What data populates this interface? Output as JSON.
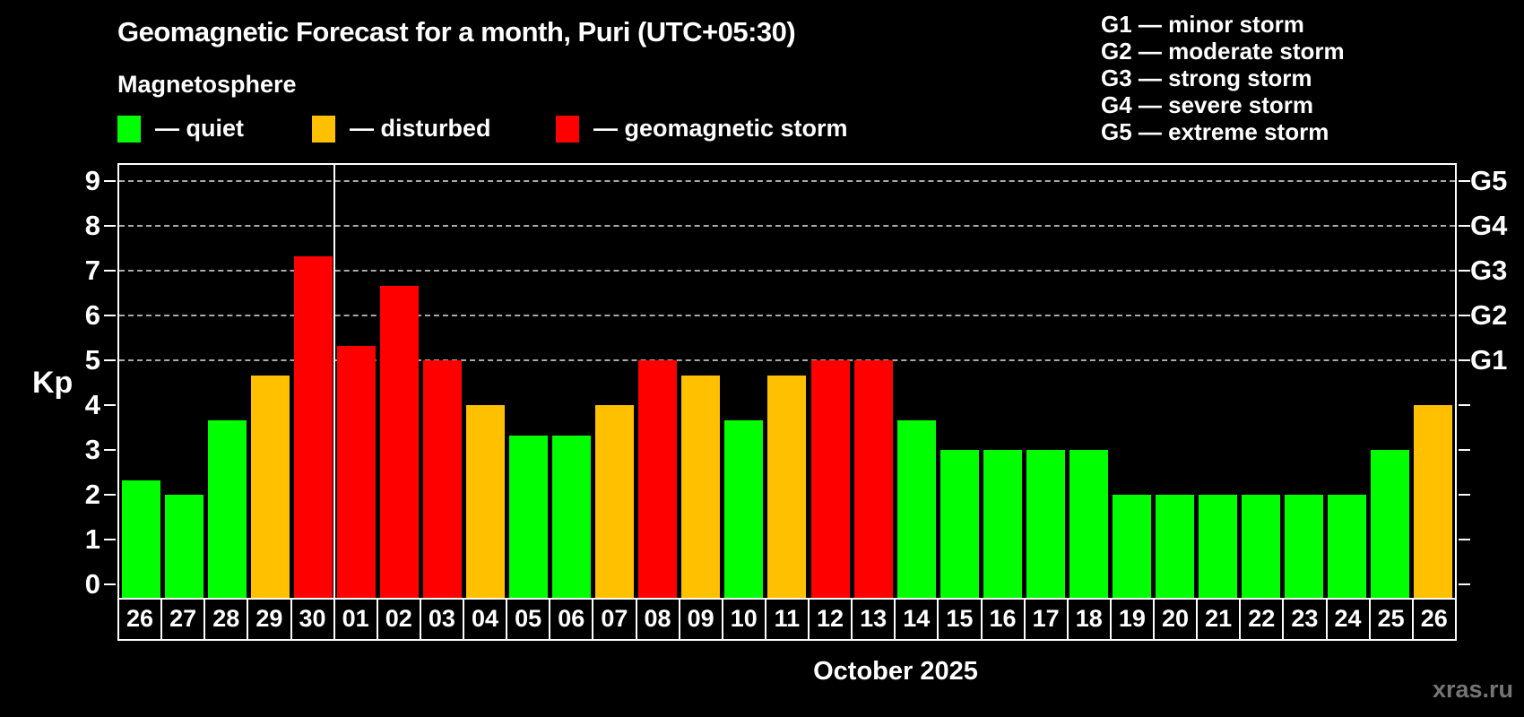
{
  "header": {
    "title": "Geomagnetic Forecast for a month, Puri (UTC+05:30)",
    "subtitle": "Magnetosphere"
  },
  "legend": {
    "items": [
      {
        "label": "— quiet",
        "state": "quiet"
      },
      {
        "label": "— disturbed",
        "state": "disturbed"
      },
      {
        "label": "— geomagnetic storm",
        "state": "storm"
      }
    ]
  },
  "storm_scale_legend": [
    "G1 — minor storm",
    "G2 — moderate storm",
    "G3 — strong storm",
    "G4 — severe storm",
    "G5 — extreme storm"
  ],
  "chart_data": {
    "type": "bar",
    "title": "Geomagnetic Forecast for a month, Puri (UTC+05:30)",
    "xlabel": "October 2025",
    "ylabel": "Kp",
    "ylim": [
      0,
      9.4
    ],
    "grid": "dashed horizontal at Kp 5-9",
    "yticks": [
      0,
      1,
      2,
      3,
      4,
      5,
      6,
      7,
      8,
      9
    ],
    "gridlines_at": [
      5,
      6,
      7,
      8,
      9
    ],
    "right_axis_labels": [
      {
        "label": "G1",
        "kp": 5
      },
      {
        "label": "G2",
        "kp": 6
      },
      {
        "label": "G3",
        "kp": 7
      },
      {
        "label": "G4",
        "kp": 8
      },
      {
        "label": "G5",
        "kp": 9
      }
    ],
    "month_boundary_after_bar": 5,
    "bars": [
      {
        "label": "26",
        "value": 2.33,
        "state": "quiet"
      },
      {
        "label": "27",
        "value": 2.0,
        "state": "quiet"
      },
      {
        "label": "28",
        "value": 3.67,
        "state": "quiet"
      },
      {
        "label": "29",
        "value": 4.67,
        "state": "disturbed"
      },
      {
        "label": "30",
        "value": 7.33,
        "state": "storm"
      },
      {
        "label": "01",
        "value": 5.33,
        "state": "storm"
      },
      {
        "label": "02",
        "value": 6.67,
        "state": "storm"
      },
      {
        "label": "03",
        "value": 5.0,
        "state": "storm"
      },
      {
        "label": "04",
        "value": 4.0,
        "state": "disturbed"
      },
      {
        "label": "05",
        "value": 3.33,
        "state": "quiet"
      },
      {
        "label": "06",
        "value": 3.33,
        "state": "quiet"
      },
      {
        "label": "07",
        "value": 4.0,
        "state": "disturbed"
      },
      {
        "label": "08",
        "value": 5.0,
        "state": "storm"
      },
      {
        "label": "09",
        "value": 4.67,
        "state": "disturbed"
      },
      {
        "label": "10",
        "value": 3.67,
        "state": "quiet"
      },
      {
        "label": "11",
        "value": 4.67,
        "state": "disturbed"
      },
      {
        "label": "12",
        "value": 5.0,
        "state": "storm"
      },
      {
        "label": "13",
        "value": 5.0,
        "state": "storm"
      },
      {
        "label": "14",
        "value": 3.67,
        "state": "quiet"
      },
      {
        "label": "15",
        "value": 3.0,
        "state": "quiet"
      },
      {
        "label": "16",
        "value": 3.0,
        "state": "quiet"
      },
      {
        "label": "17",
        "value": 3.0,
        "state": "quiet"
      },
      {
        "label": "18",
        "value": 3.0,
        "state": "quiet"
      },
      {
        "label": "19",
        "value": 2.0,
        "state": "quiet"
      },
      {
        "label": "20",
        "value": 2.0,
        "state": "quiet"
      },
      {
        "label": "21",
        "value": 2.0,
        "state": "quiet"
      },
      {
        "label": "22",
        "value": 2.0,
        "state": "quiet"
      },
      {
        "label": "23",
        "value": 2.0,
        "state": "quiet"
      },
      {
        "label": "24",
        "value": 2.0,
        "state": "quiet"
      },
      {
        "label": "25",
        "value": 3.0,
        "state": "quiet"
      },
      {
        "label": "26",
        "value": 4.0,
        "state": "disturbed"
      }
    ]
  },
  "colors": {
    "quiet": "#00ff00",
    "disturbed": "#ffc000",
    "storm": "#ff0000",
    "grid": "#a9a9a9",
    "text": "#ffffff",
    "watermark": "#757575",
    "background": "#000000"
  },
  "footer": {
    "month_label": "October 2025",
    "watermark": "xras.ru"
  }
}
